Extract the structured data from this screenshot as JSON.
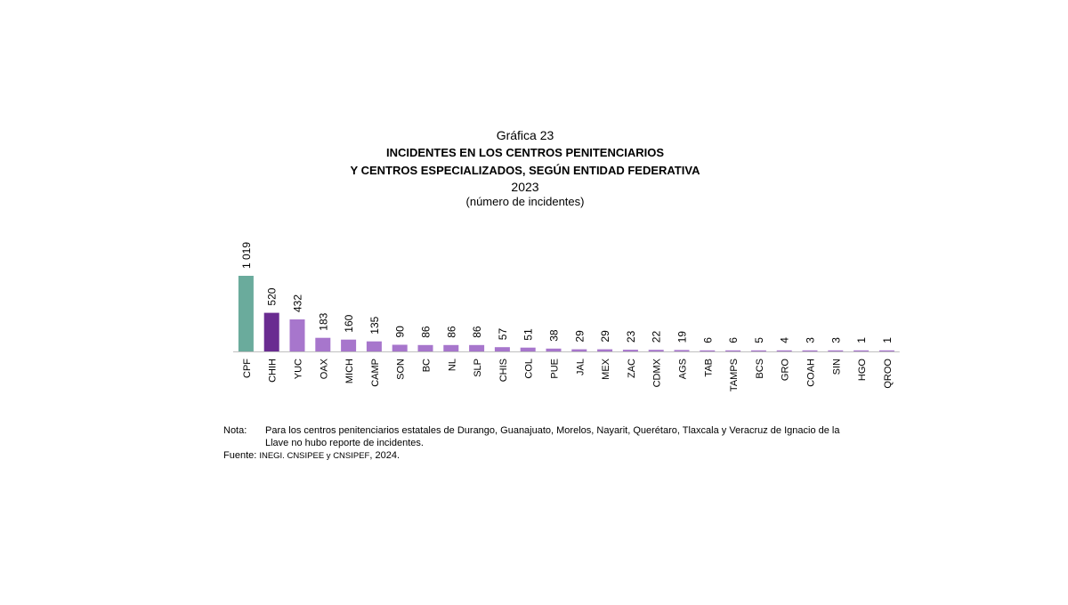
{
  "chart_number": "Gráfica 23",
  "chart_data": {
    "type": "bar",
    "title_line1": "INCIDENTES EN LOS CENTROS PENITENCIARIOS",
    "title_line2": "Y CENTROS ESPECIALIZADOS, SEGÚN ENTIDAD FEDERATIVA",
    "year": "2023",
    "unit": "(número de incidentes)",
    "categories": [
      "CPF",
      "CHIH",
      "YUC",
      "OAX",
      "MICH",
      "CAMP",
      "SON",
      "BC",
      "NL",
      "SLP",
      "CHIS",
      "COL",
      "PUE",
      "JAL",
      "MEX",
      "ZAC",
      "CDMX",
      "AGS",
      "TAB",
      "TAMPS",
      "BCS",
      "GRO",
      "COAH",
      "SIN",
      "HGO",
      "QROO"
    ],
    "values": [
      1019,
      520,
      432,
      183,
      160,
      135,
      90,
      86,
      86,
      86,
      57,
      51,
      38,
      29,
      29,
      23,
      22,
      19,
      6,
      6,
      5,
      4,
      3,
      3,
      1,
      1
    ],
    "value_labels": [
      "1 019",
      "520",
      "432",
      "183",
      "160",
      "135",
      "90",
      "86",
      "86",
      "86",
      "57",
      "51",
      "38",
      "29",
      "29",
      "23",
      "22",
      "19",
      "6",
      "6",
      "5",
      "4",
      "3",
      "3",
      "1",
      "1"
    ],
    "ylim": [
      0,
      1019
    ],
    "grid": false,
    "legend": "none",
    "colors": {
      "federal": "#6aab9c",
      "highlight": "#6a2c91",
      "states": "#a776cc",
      "axis": "#bfbfbf"
    }
  },
  "notes": {
    "note_label": "Nota:",
    "note_text": "Para los centros penitenciarios estatales de Durango, Guanajuato, Morelos, Nayarit, Querétaro, Tlaxcala y Veracruz de Ignacio de la Llave no hubo reporte de incidentes.",
    "source_label": "Fuente:",
    "source_text_small": "INEGI. CNSIPEE y CNSIPEF",
    "source_text_rest": ", 2024."
  }
}
